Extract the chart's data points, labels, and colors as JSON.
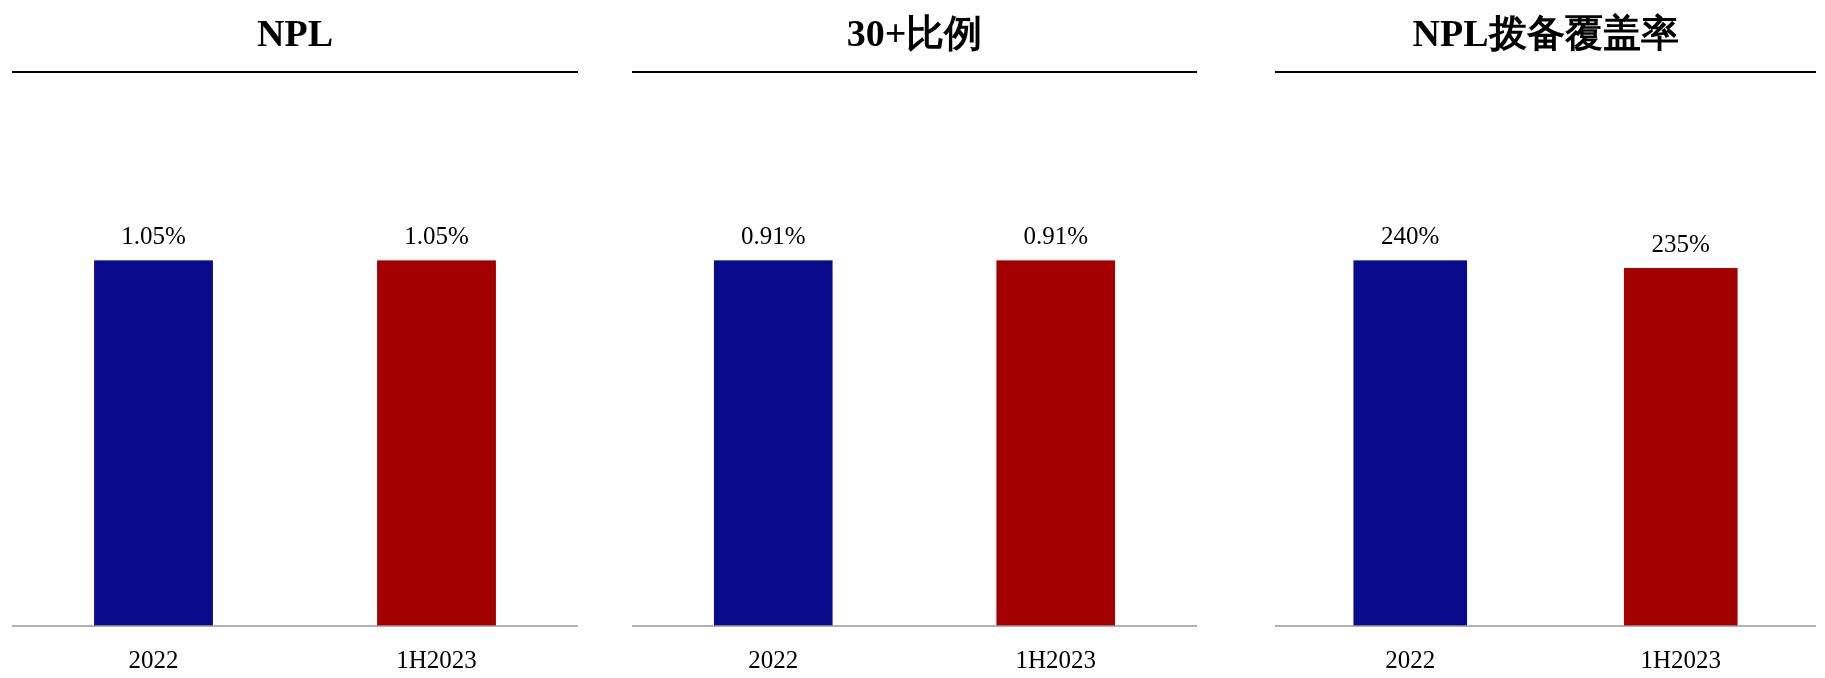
{
  "chart_data": [
    {
      "type": "bar",
      "title": "NPL",
      "categories": [
        "2022",
        "1H2023"
      ],
      "values": [
        1.05,
        1.05
      ],
      "colors": [
        "#0a0a8c",
        "#a50000"
      ],
      "value_labels": [
        "1.05%",
        "1.05%"
      ]
    },
    {
      "type": "bar",
      "title": "30+比例",
      "categories": [
        "2022",
        "1H2023"
      ],
      "values": [
        0.91,
        0.91
      ],
      "colors": [
        "#0a0a8c",
        "#a50000"
      ],
      "value_labels": [
        "0.91%",
        "0.91%"
      ]
    },
    {
      "type": "bar",
      "title": "NPL拨备覆盖率",
      "categories": [
        "2022",
        "1H2023"
      ],
      "values": [
        240,
        235
      ],
      "colors": [
        "#0a0a8c",
        "#a50000"
      ],
      "value_labels": [
        "240%",
        "235%"
      ]
    }
  ]
}
